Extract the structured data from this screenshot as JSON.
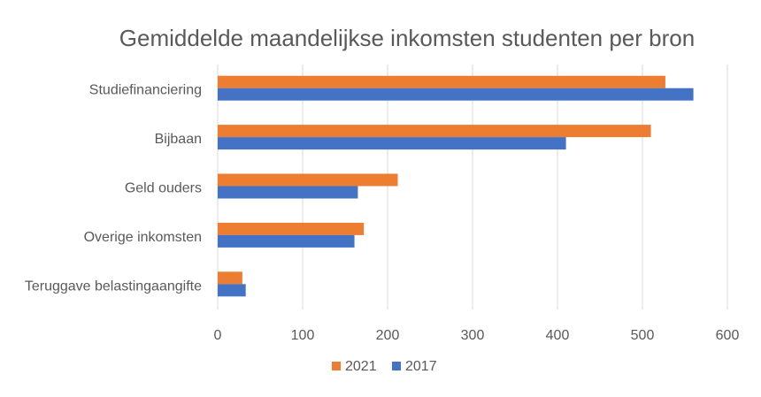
{
  "chart_data": {
    "type": "bar",
    "orientation": "horizontal",
    "title": "Gemiddelde maandelijkse inkomsten studenten per bron",
    "xlabel": "",
    "ylabel": "",
    "categories": [
      "Studiefinanciering",
      "Bijbaan",
      "Geld ouders",
      "Overige inkomsten",
      "Teruggave belastingaangifte"
    ],
    "series": [
      {
        "name": "2021",
        "color": "#ED7D31",
        "values": [
          527,
          510,
          212,
          172,
          29
        ]
      },
      {
        "name": "2017",
        "color": "#4472C4",
        "values": [
          560,
          410,
          165,
          161,
          33
        ]
      }
    ],
    "xlim": [
      0,
      600
    ],
    "xticks": [
      "0",
      "100",
      "200",
      "300",
      "400",
      "500",
      "600"
    ],
    "grid": true,
    "legend_position": "bottom"
  }
}
